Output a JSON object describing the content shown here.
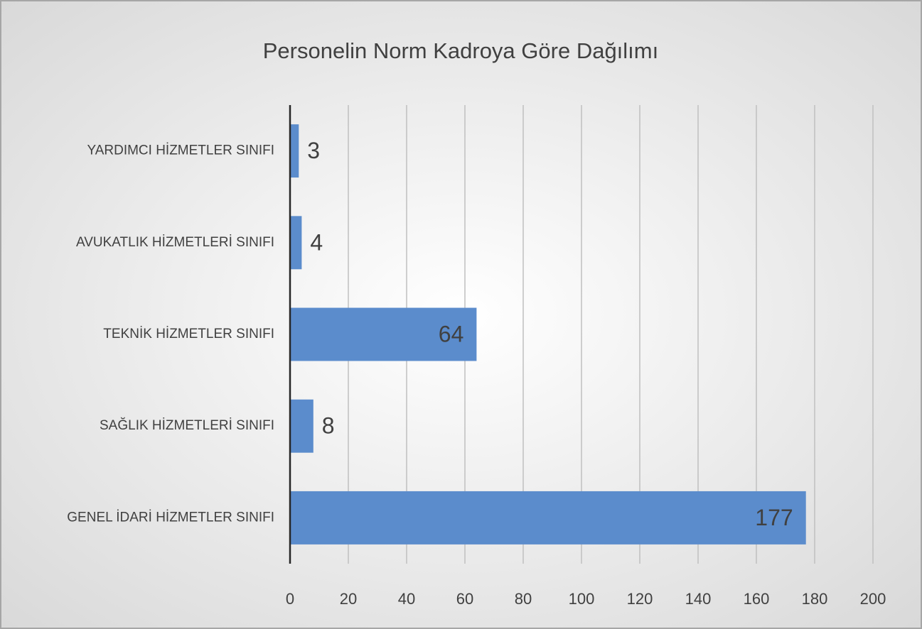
{
  "chart_data": {
    "type": "bar",
    "orientation": "horizontal",
    "title": "Personelin Norm Kadroya Göre Dağılımı",
    "categories": [
      "YARDIMCI HİZMETLER SINIFI",
      "AVUKATLIK HİZMETLERİ SINIFI",
      "TEKNİK HİZMETLER SINIFI",
      "SAĞLIK HİZMETLERİ SINIFI",
      "GENEL İDARİ HİZMETLER SINIFI"
    ],
    "values": [
      3,
      4,
      64,
      8,
      177
    ],
    "color": "#5b8ccc",
    "xlim": [
      0,
      200
    ],
    "xticks": [
      0,
      20,
      40,
      60,
      80,
      100,
      120,
      140,
      160,
      180,
      200
    ],
    "grid": true
  }
}
